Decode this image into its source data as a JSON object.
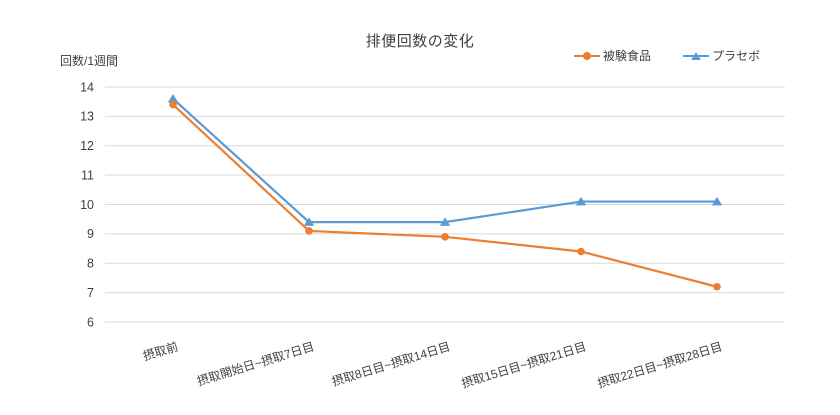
{
  "chart_data": {
    "type": "line",
    "title": "排便回数の変化",
    "y_unit_label": "回数/1週間",
    "categories": [
      "摂取前",
      "摂取開始日~摂取7日目",
      "摂取8日目~摂取14日目",
      "摂取15日目~摂取21日目",
      "摂取22日目~摂取28日目"
    ],
    "series": [
      {
        "name": "被験食品",
        "color": "#ED7D31",
        "marker": "circle",
        "values": [
          13.4,
          9.1,
          8.9,
          8.4,
          7.2
        ]
      },
      {
        "name": "プラセボ",
        "color": "#5B9BD5",
        "marker": "triangle",
        "values": [
          13.6,
          9.4,
          9.4,
          10.1,
          10.1
        ]
      }
    ],
    "ylim": [
      6,
      14
    ],
    "yticks": [
      6,
      7,
      8,
      9,
      10,
      11,
      12,
      13,
      14
    ],
    "grid": true,
    "legend_position": "top-right",
    "colors": {
      "grid": "#D9D9D9",
      "text": "#3f3f3f",
      "background": "#ffffff"
    }
  }
}
